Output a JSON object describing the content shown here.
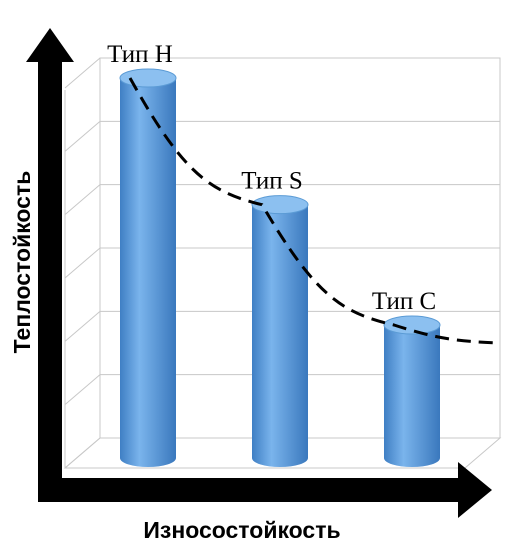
{
  "chart_data": {
    "type": "cylinder-bar",
    "x_label": "Износостойкость",
    "y_label": "Теплостойкость",
    "categories": [
      "Тип H",
      "Тип S",
      "Тип C"
    ],
    "values": [
      6,
      4,
      2.1
    ],
    "color": "#5b9bd5",
    "ylim": [
      0,
      6
    ],
    "yticks": [
      0,
      1,
      2,
      3,
      4,
      5,
      6
    ],
    "grid": true,
    "trendline": true
  }
}
